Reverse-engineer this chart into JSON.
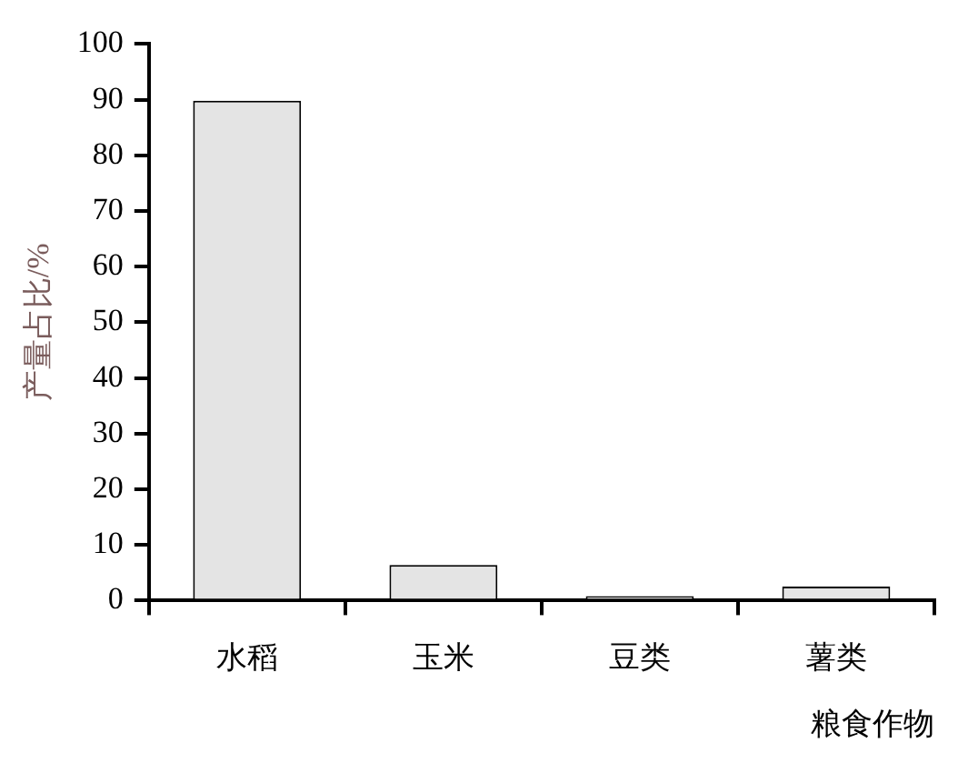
{
  "chart_data": {
    "type": "bar",
    "categories": [
      "水稻",
      "玉米",
      "豆类",
      "薯类"
    ],
    "values": [
      89.8,
      6.4,
      0.8,
      2.5
    ],
    "color": "#e4e4e4",
    "xlabel": "粮食作物",
    "ylabel": "产量占比/%",
    "ylim": [
      0,
      100
    ],
    "yticks": [
      0,
      10,
      20,
      30,
      40,
      50,
      60,
      70,
      80,
      90,
      100
    ],
    "grid": false,
    "legend": false
  }
}
